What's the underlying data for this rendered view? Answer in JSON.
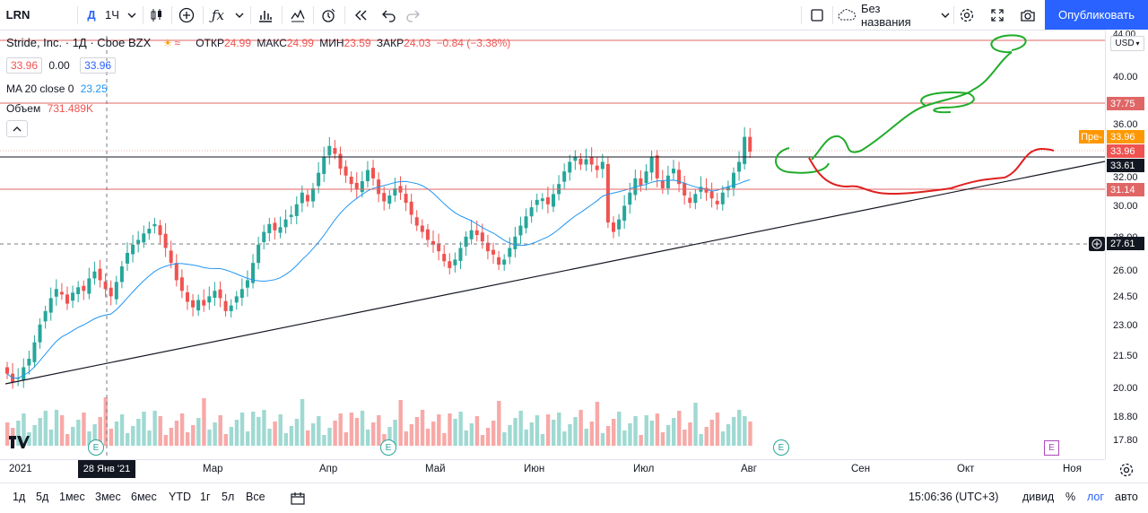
{
  "toolbar": {
    "symbol": "LRN",
    "interval_day": "Д",
    "interval": "1Ч",
    "fx": "ƒx",
    "layout_name": "Без названия",
    "publish_label": "Опубликовать",
    "icons": [
      "chevron-down-icon",
      "candles-icon",
      "plus-circle-icon",
      "fx-icon",
      "bar-chart-icon",
      "compare-icon",
      "alert-icon",
      "replay-icon",
      "undo-icon",
      "redo-icon",
      "square-icon",
      "cloud-icon",
      "gear-icon",
      "fullscreen-icon",
      "camera-icon"
    ]
  },
  "legend": {
    "title": "Stride, Inc. · 1Д · Cboe BZX",
    "ohlc": {
      "o_label": "ОТКР",
      "o": "24.99",
      "h_label": "МАКС",
      "h": "24.99",
      "l_label": "МИН",
      "l": "23.59",
      "c_label": "ЗАКР",
      "c": "24.03",
      "change": "−0.84 (−3.38%)"
    },
    "bid": "33.96",
    "spread": "0.00",
    "ask": "33.96",
    "ma_label": "MA 20 close 0",
    "ma_value": "23.25",
    "volume_label": "Объем",
    "volume_value": "731.489K"
  },
  "price_axis": {
    "currency": "USD",
    "top_label": "44.00",
    "labels": [
      "40.00",
      "36.00",
      "32.00",
      "30.00",
      "28.00",
      "26.00",
      "24.50",
      "23.00",
      "21.50",
      "20.00",
      "18.80",
      "17.80"
    ],
    "tags": {
      "r1": "37.75",
      "pre_label": "Пре-",
      "pre_value": "33.96",
      "last": "33.96",
      "trend": "33.61",
      "r2": "31.14",
      "cross": "27.61"
    }
  },
  "time_axis": {
    "labels": [
      "2021",
      "Мар",
      "Апр",
      "Май",
      "Июн",
      "Июл",
      "Авг",
      "Сен",
      "Окт",
      "Ноя"
    ],
    "cursor_date": "28 Янв '21"
  },
  "bottombar": {
    "ranges": [
      "1д",
      "5д",
      "1мес",
      "3мес",
      "6мес",
      "YTD",
      "1г",
      "5л",
      "Все"
    ],
    "time": "15:06:36 (UTC+3)",
    "dividend": "дивид",
    "percent": "%",
    "log": "лог",
    "auto": "авто"
  },
  "colors": {
    "up": "#26a69a",
    "down": "#ef5350",
    "vol_up": "#9fd9d2",
    "vol_down": "#f7a9a7",
    "accent": "#2962ff",
    "ma": "#2196f3",
    "drawing_green": "#1fac2a",
    "drawing_red": "#e01f1f",
    "hline_red": "#e06666",
    "pre": "#ff9800"
  },
  "chart_data": {
    "type": "candlestick",
    "symbol": "LRN",
    "ohlc_last_selected": {
      "open": 24.99,
      "high": 24.99,
      "low": 23.59,
      "close": 24.03
    },
    "close": [
      20.7,
      20.3,
      20.5,
      21.0,
      21.4,
      22.2,
      23.1,
      23.8,
      24.5,
      25.0,
      24.7,
      24.2,
      24.8,
      25.1,
      24.9,
      25.6,
      26.0,
      25.5,
      25.0,
      24.6,
      25.4,
      26.3,
      27.1,
      27.6,
      27.9,
      28.3,
      28.6,
      28.9,
      28.2,
      27.4,
      26.5,
      25.5,
      24.9,
      24.3,
      24.0,
      24.4,
      24.1,
      24.6,
      24.9,
      24.5,
      23.8,
      24.1,
      24.6,
      25.0,
      25.5,
      26.5,
      27.6,
      28.4,
      28.9,
      28.5,
      28.7,
      29.2,
      29.5,
      30.2,
      31.0,
      30.4,
      31.3,
      32.4,
      33.6,
      34.4,
      33.8,
      32.7,
      32.2,
      31.6,
      31.2,
      31.8,
      32.6,
      32.0,
      30.9,
      30.4,
      30.8,
      31.3,
      31.0,
      30.3,
      29.5,
      28.8,
      28.4,
      27.9,
      27.6,
      27.2,
      26.6,
      26.2,
      26.7,
      27.4,
      28.1,
      28.5,
      28.2,
      27.8,
      27.2,
      27.0,
      26.4,
      26.7,
      27.4,
      28.1,
      28.8,
      29.4,
      30.0,
      30.5,
      30.6,
      30.2,
      30.9,
      31.6,
      32.5,
      33.2,
      33.6,
      33.0,
      33.4,
      33.0,
      32.6,
      33.2,
      29.0,
      28.4,
      29.2,
      30.1,
      31.0,
      32.0,
      31.5,
      32.5,
      33.6,
      32.0,
      31.3,
      32.2,
      32.7,
      31.6,
      30.8,
      30.3,
      30.9,
      31.4,
      31.0,
      30.6,
      30.2,
      31.0,
      31.4,
      32.4,
      33.2,
      35.1,
      33.96
    ]
  }
}
